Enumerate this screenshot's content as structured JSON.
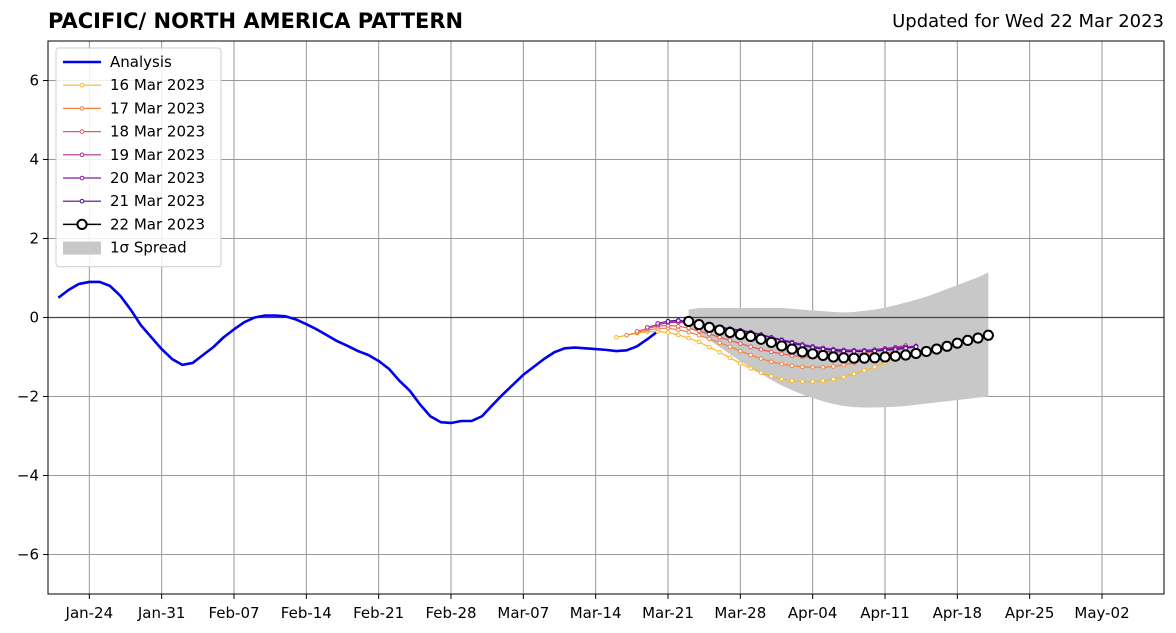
{
  "title": "PACIFIC/ NORTH AMERICA PATTERN",
  "subtitle": "Updated for Wed 22 Mar 2023",
  "chart_data": {
    "type": "line",
    "x_start": "2023-01-20",
    "x_end": "2023-05-08",
    "ylim": [
      -7,
      7
    ],
    "yticks": [
      -6,
      -4,
      -2,
      0,
      2,
      4,
      6
    ],
    "ytick_labels": [
      "−6",
      "−4",
      "−2",
      "0",
      "2",
      "4",
      "6"
    ],
    "xticks": [
      "2023-01-24",
      "2023-01-31",
      "2023-02-07",
      "2023-02-14",
      "2023-02-21",
      "2023-02-28",
      "2023-03-07",
      "2023-03-14",
      "2023-03-21",
      "2023-03-28",
      "2023-04-04",
      "2023-04-11",
      "2023-04-18",
      "2023-04-25",
      "2023-05-02"
    ],
    "xtick_labels": [
      "Jan-24",
      "Jan-31",
      "Feb-07",
      "Feb-14",
      "Feb-21",
      "Feb-28",
      "Mar-07",
      "Mar-14",
      "Mar-21",
      "Mar-28",
      "Apr-04",
      "Apr-11",
      "Apr-18",
      "Apr-25",
      "May-02"
    ],
    "grid": true,
    "legend_position": "top-left",
    "analysis": {
      "name": "Analysis",
      "color": "#0000ee",
      "start": "2023-01-21",
      "values": [
        0.5,
        0.7,
        0.85,
        0.9,
        0.9,
        0.8,
        0.55,
        0.2,
        -0.2,
        -0.5,
        -0.8,
        -1.05,
        -1.2,
        -1.15,
        -0.95,
        -0.75,
        -0.5,
        -0.3,
        -0.12,
        0.0,
        0.05,
        0.05,
        0.03,
        -0.05,
        -0.17,
        -0.3,
        -0.45,
        -0.6,
        -0.72,
        -0.85,
        -0.95,
        -1.1,
        -1.3,
        -1.6,
        -1.85,
        -2.2,
        -2.5,
        -2.65,
        -2.67,
        -2.62,
        -2.62,
        -2.5,
        -2.22,
        -1.95,
        -1.7,
        -1.45,
        -1.25,
        -1.05,
        -0.88,
        -0.78,
        -0.76,
        -0.78,
        -0.8,
        -0.82,
        -0.85,
        -0.83,
        -0.73,
        -0.55,
        -0.35
      ]
    },
    "forecasts": [
      {
        "name": "16 Mar 2023",
        "color": "#fbb91f",
        "start": "2023-03-16",
        "values": [
          -0.5,
          -0.45,
          -0.4,
          -0.36,
          -0.35,
          -0.38,
          -0.44,
          -0.52,
          -0.62,
          -0.75,
          -0.88,
          -1.02,
          -1.16,
          -1.29,
          -1.4,
          -1.49,
          -1.56,
          -1.6,
          -1.62,
          -1.62,
          -1.6,
          -1.56,
          -1.5,
          -1.43,
          -1.34,
          -1.25,
          -1.14,
          -1.02,
          -0.9
        ]
      },
      {
        "name": "17 Mar 2023",
        "color": "#f4823e",
        "start": "2023-03-17",
        "values": [
          -0.45,
          -0.38,
          -0.32,
          -0.28,
          -0.27,
          -0.31,
          -0.37,
          -0.45,
          -0.54,
          -0.64,
          -0.74,
          -0.85,
          -0.95,
          -1.04,
          -1.12,
          -1.18,
          -1.22,
          -1.25,
          -1.26,
          -1.26,
          -1.24,
          -1.2,
          -1.15,
          -1.08,
          -1.0,
          -0.92,
          -0.84,
          -0.76
        ]
      },
      {
        "name": "18 Mar 2023",
        "color": "#e45a5b",
        "start": "2023-03-18",
        "values": [
          -0.35,
          -0.28,
          -0.22,
          -0.2,
          -0.22,
          -0.27,
          -0.34,
          -0.42,
          -0.5,
          -0.58,
          -0.66,
          -0.74,
          -0.81,
          -0.87,
          -0.92,
          -0.96,
          -0.99,
          -1.0,
          -1.0,
          -0.99,
          -0.97,
          -0.94,
          -0.9,
          -0.86,
          -0.82,
          -0.77,
          -0.72
        ]
      },
      {
        "name": "19 Mar 2023",
        "color": "#b12e8f",
        "start": "2023-03-19",
        "values": [
          -0.25,
          -0.18,
          -0.13,
          -0.12,
          -0.15,
          -0.2,
          -0.26,
          -0.32,
          -0.39,
          -0.46,
          -0.53,
          -0.6,
          -0.66,
          -0.72,
          -0.77,
          -0.81,
          -0.84,
          -0.86,
          -0.87,
          -0.87,
          -0.86,
          -0.84,
          -0.81,
          -0.78,
          -0.75,
          -0.71
        ]
      },
      {
        "name": "20 Mar 2023",
        "color": "#8b16ab",
        "start": "2023-03-20",
        "values": [
          -0.15,
          -0.09,
          -0.07,
          -0.1,
          -0.15,
          -0.2,
          -0.24,
          -0.28,
          -0.32,
          -0.37,
          -0.43,
          -0.5,
          -0.56,
          -0.62,
          -0.68,
          -0.73,
          -0.77,
          -0.8,
          -0.82,
          -0.83,
          -0.83,
          -0.82,
          -0.8,
          -0.78,
          -0.75,
          -0.72
        ]
      },
      {
        "name": "21 Mar 2023",
        "color": "#4a0a8e",
        "start": "2023-03-21",
        "values": [
          -0.1,
          -0.08,
          -0.12,
          -0.17,
          -0.21,
          -0.25,
          -0.29,
          -0.33,
          -0.38,
          -0.44,
          -0.51,
          -0.58,
          -0.65,
          -0.71,
          -0.76,
          -0.8,
          -0.83,
          -0.85,
          -0.86,
          -0.86,
          -0.85,
          -0.83,
          -0.81,
          -0.78,
          -0.74
        ]
      },
      {
        "name": "22 Mar 2023",
        "color": "#000000",
        "marker_fill": "#ffffff",
        "start": "2023-03-23",
        "values": [
          -0.1,
          -0.18,
          -0.25,
          -0.32,
          -0.38,
          -0.43,
          -0.48,
          -0.55,
          -0.63,
          -0.72,
          -0.8,
          -0.87,
          -0.92,
          -0.96,
          -1.0,
          -1.02,
          -1.03,
          -1.03,
          -1.02,
          -1.0,
          -0.98,
          -0.95,
          -0.91,
          -0.86,
          -0.8,
          -0.73,
          -0.65,
          -0.58,
          -0.52,
          -0.45
        ]
      }
    ],
    "spread": {
      "name": "1σ Spread",
      "color": "#c8c8c8",
      "start": "2023-03-23",
      "upper": [
        0.2,
        0.24,
        0.24,
        0.24,
        0.24,
        0.24,
        0.24,
        0.24,
        0.24,
        0.24,
        0.22,
        0.2,
        0.18,
        0.16,
        0.14,
        0.13,
        0.14,
        0.17,
        0.2,
        0.25,
        0.31,
        0.38,
        0.45,
        0.53,
        0.62,
        0.72,
        0.82,
        0.92,
        1.02,
        1.14
      ],
      "lower": [
        -0.25,
        -0.4,
        -0.57,
        -0.75,
        -0.93,
        -1.1,
        -1.27,
        -1.43,
        -1.58,
        -1.72,
        -1.84,
        -1.95,
        -2.04,
        -2.12,
        -2.19,
        -2.24,
        -2.27,
        -2.28,
        -2.28,
        -2.27,
        -2.26,
        -2.24,
        -2.21,
        -2.18,
        -2.15,
        -2.12,
        -2.09,
        -2.06,
        -2.03,
        -2.0
      ]
    }
  }
}
